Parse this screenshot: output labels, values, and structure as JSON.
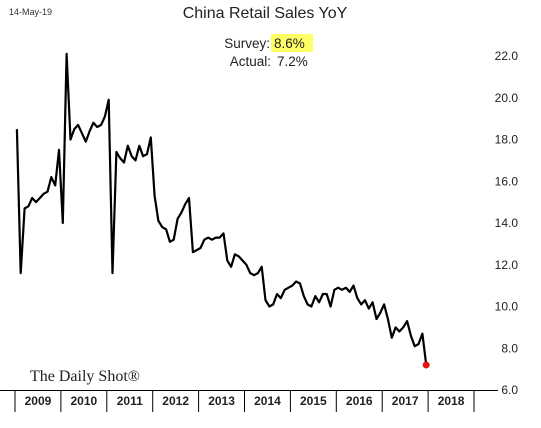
{
  "date_stamp": "14-May-19",
  "branding": "The Daily Shot®",
  "annotation": {
    "survey_label": "Survey:",
    "survey_value": "8.6%",
    "actual_label": "Actual:",
    "actual_value": "7.2%",
    "highlight_color": "#ffff66"
  },
  "chart_data": {
    "type": "line",
    "title": "China Retail Sales YoY",
    "xlabel": "",
    "ylabel": "",
    "ylim": [
      6.0,
      22.0
    ],
    "yticks": [
      "6.0",
      "8.0",
      "10.0",
      "12.0",
      "14.0",
      "16.0",
      "18.0",
      "20.0",
      "22.0"
    ],
    "xticks": [
      "2009",
      "2010",
      "2011",
      "2012",
      "2013",
      "2014",
      "2015",
      "2016",
      "2017",
      "2018"
    ],
    "x_start": "2009-01",
    "frequency": "monthly",
    "line_color": "#000000",
    "last_point_color": "#e81010",
    "grid": false,
    "series": [
      {
        "values": [
          18.5,
          11.6,
          14.7,
          14.8,
          15.2,
          15.0,
          15.2,
          15.4,
          15.5,
          16.2,
          15.8,
          17.5,
          14.0,
          22.1,
          18.0,
          18.5,
          18.7,
          18.3,
          17.9,
          18.4,
          18.8,
          18.6,
          18.7,
          19.1,
          19.9,
          11.6,
          17.4,
          17.1,
          16.9,
          17.7,
          17.2,
          17.0,
          17.7,
          17.2,
          17.3,
          18.1,
          15.3,
          14.1,
          13.8,
          13.7,
          13.1,
          13.2,
          14.2,
          14.5,
          14.9,
          15.2,
          12.6,
          12.7,
          12.8,
          13.2,
          13.3,
          13.2,
          13.3,
          13.3,
          13.5,
          12.2,
          11.9,
          12.5,
          12.4,
          12.2,
          12.0,
          11.6,
          11.5,
          11.6,
          11.9,
          10.3,
          10.0,
          10.1,
          10.6,
          10.4,
          10.8,
          10.9,
          11.0,
          11.2,
          11.1,
          10.5,
          10.1,
          10.0,
          10.5,
          10.2,
          10.6,
          10.6,
          10.0,
          10.8,
          10.9,
          10.8,
          10.9,
          10.7,
          11.0,
          10.4,
          10.1,
          10.3,
          9.9,
          10.2,
          9.4,
          9.7,
          10.1,
          9.4,
          8.5,
          9.0,
          8.8,
          9.0,
          9.3,
          8.6,
          8.1,
          8.2,
          8.7,
          7.2
        ]
      }
    ]
  }
}
